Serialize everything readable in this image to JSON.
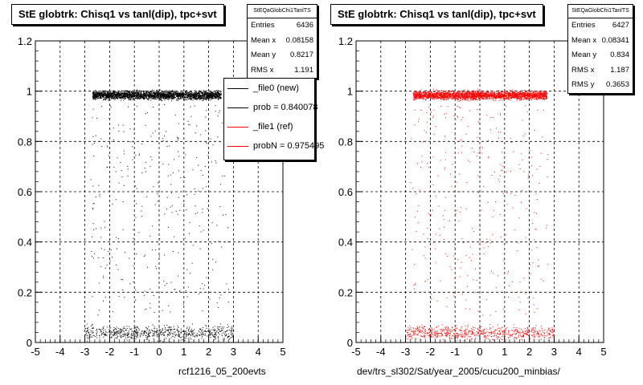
{
  "chart_data": [
    {
      "type": "scatter",
      "title": "StE globtrk: Chisq1 vs tanl(dip), tpc+svt",
      "xlabel": "rcf1216_05_200evts",
      "ylabel": "",
      "xlim": [
        -5,
        5
      ],
      "ylim": [
        0,
        1.2
      ],
      "x_ticks": [
        -5,
        -4,
        -3,
        -2,
        -1,
        0,
        1,
        2,
        3,
        4,
        5
      ],
      "y_ticks": [
        0,
        0.2,
        0.4,
        0.6,
        0.8,
        1,
        1.2
      ],
      "x_tick_labels": [
        "-5",
        "-4",
        "-3",
        "-2",
        "-1",
        "0",
        "1",
        "2",
        "3",
        "4",
        "5"
      ],
      "y_tick_labels": [
        "0",
        "0.2",
        "0.4",
        "0.6",
        "0.8",
        "1",
        "1.2"
      ],
      "grid": true,
      "marker_color": "#000000",
      "series": [
        {
          "bands": [
            {
              "x_range": [
                -2.7,
                2.5
              ],
              "y": 0.985,
              "spread": 0.025,
              "density": "dense"
            },
            {
              "x_range": [
                -3.0,
                3.0
              ],
              "y": 0.04,
              "spread": 0.04,
              "density": "medium"
            },
            {
              "x_range": [
                -2.8,
                2.8
              ],
              "y_range": [
                0.1,
                0.95
              ],
              "density": "sparse"
            }
          ]
        }
      ],
      "stats": {
        "name": "StEQaGlobChi1TanlTS",
        "rows": [
          {
            "label": "Entries",
            "value": "6436"
          },
          {
            "label": "Mean x",
            "value": "0.08158"
          },
          {
            "label": "Mean y",
            "value": "0.8217"
          },
          {
            "label": "RMS x",
            "value": "1.191"
          }
        ]
      },
      "legend": [
        {
          "label": "_file0 (new)",
          "color": "#000000"
        },
        {
          "label": "prob = 0.840078",
          "color": "#000000"
        },
        {
          "label": "_file1 (ref)",
          "color": "#ff0000"
        },
        {
          "label": "probN = 0.975495",
          "color": "#ff0000"
        }
      ]
    },
    {
      "type": "scatter",
      "title": "StE globtrk: Chisq1 vs tanl(dip), tpc+svt",
      "xlabel": "dev/trs_sl302/Sat/year_2005/cucu200_minbias/",
      "ylabel": "",
      "xlim": [
        -5,
        5
      ],
      "ylim": [
        0,
        1.2
      ],
      "x_ticks": [
        -5,
        -4,
        -3,
        -2,
        -1,
        0,
        1,
        2,
        3,
        4,
        5
      ],
      "y_ticks": [
        0,
        0.2,
        0.4,
        0.6,
        0.8,
        1,
        1.2
      ],
      "x_tick_labels": [
        "-5",
        "-4",
        "-3",
        "-2",
        "-1",
        "0",
        "1",
        "2",
        "3",
        "4",
        "5"
      ],
      "y_tick_labels": [
        "0",
        "0.2",
        "0.4",
        "0.6",
        "0.8",
        "1",
        "1.2"
      ],
      "grid": true,
      "marker_color": "#ff0000",
      "series": [
        {
          "bands": [
            {
              "x_range": [
                -2.7,
                2.7
              ],
              "y": 0.985,
              "spread": 0.025,
              "density": "dense"
            },
            {
              "x_range": [
                -3.0,
                3.0
              ],
              "y": 0.04,
              "spread": 0.04,
              "density": "medium"
            },
            {
              "x_range": [
                -2.8,
                2.8
              ],
              "y_range": [
                0.1,
                0.95
              ],
              "density": "sparse"
            }
          ]
        }
      ],
      "stats": {
        "name": "StEQaGlobChi1TanlTS",
        "rows": [
          {
            "label": "Entries",
            "value": "6427"
          },
          {
            "label": "Mean x",
            "value": "0.08341"
          },
          {
            "label": "Mean y",
            "value": "0.834"
          },
          {
            "label": "RMS x",
            "value": "1.187"
          },
          {
            "label": "RMS y",
            "value": "0.3653"
          }
        ]
      }
    }
  ]
}
